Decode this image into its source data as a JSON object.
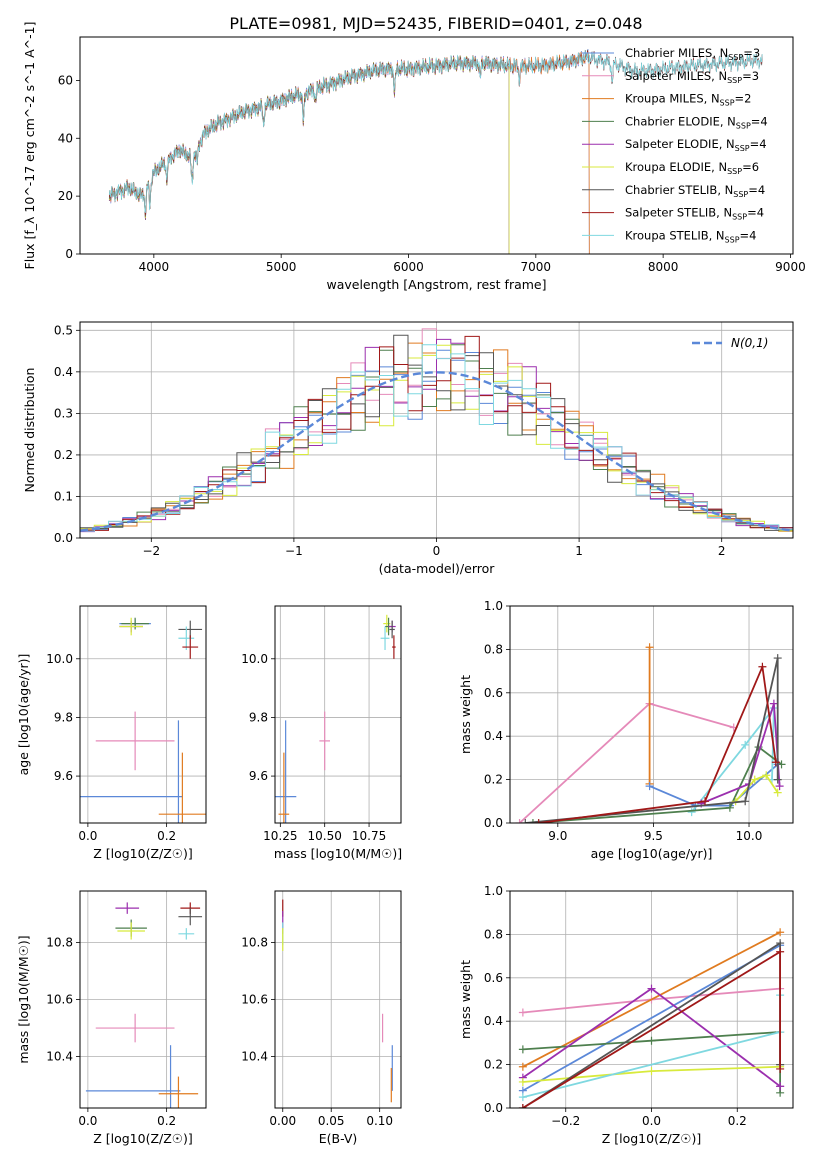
{
  "figure": {
    "title": "PLATE=0981, MJD=52435, FIBERID=0401, z=0.048"
  },
  "chart_data": [
    {
      "id": "spectrum",
      "type": "line",
      "xlabel": "wavelength [Angstrom, rest frame]",
      "ylabel": "Flux [f_λ 10^-17 erg cm^-2 s^-1 A^-1]",
      "xlim": [
        3420,
        9020
      ],
      "ylim": [
        0,
        75
      ],
      "xticks": [
        4000,
        5000,
        6000,
        7000,
        8000,
        9000
      ],
      "yticks": [
        0,
        20,
        40,
        60
      ],
      "legend_position": "upper-right",
      "series": [
        {
          "name": "Chabrier MILES, N_SSP=3",
          "label_main": "Chabrier MILES, N",
          "label_sub": "SSP",
          "label_tail": "=3",
          "color": "#5b88d8",
          "xrange": [
            3650,
            7420
          ]
        },
        {
          "name": "Salpeter MILES, N_SSP=3",
          "label_main": "Salpeter MILES, N",
          "label_sub": "SSP",
          "label_tail": "=3",
          "color": "#e58ab9",
          "xrange": [
            3650,
            7420
          ]
        },
        {
          "name": "Kroupa MILES, N_SSP=2",
          "label_main": "Kroupa MILES, N",
          "label_sub": "SSP",
          "label_tail": "=2",
          "color": "#e07b20",
          "xrange": [
            3650,
            7420
          ]
        },
        {
          "name": "Chabrier ELODIE, N_SSP=4",
          "label_main": "Chabrier ELODIE, N",
          "label_sub": "SSP",
          "label_tail": "=4",
          "color": "#4e7f4e",
          "xrange": [
            3650,
            6790
          ]
        },
        {
          "name": "Salpeter ELODIE, N_SSP=4",
          "label_main": "Salpeter ELODIE, N",
          "label_sub": "SSP",
          "label_tail": "=4",
          "color": "#9b2fae",
          "xrange": [
            3650,
            6790
          ]
        },
        {
          "name": "Kroupa ELODIE, N_SSP=6",
          "label_main": "Kroupa ELODIE, N",
          "label_sub": "SSP",
          "label_tail": "=6",
          "color": "#d8ea3c",
          "xrange": [
            3650,
            6790
          ]
        },
        {
          "name": "Chabrier STELIB, N_SSP=4",
          "label_main": "Chabrier STELIB, N",
          "label_sub": "SSP",
          "label_tail": "=4",
          "color": "#555555",
          "xrange": [
            3650,
            8780
          ]
        },
        {
          "name": "Salpeter STELIB, N_SSP=4",
          "label_main": "Salpeter STELIB, N",
          "label_sub": "SSP",
          "label_tail": "=4",
          "color": "#a01818",
          "xrange": [
            3650,
            8780
          ]
        },
        {
          "name": "Kroupa STELIB, N_SSP=4",
          "label_main": "Kroupa STELIB, N",
          "label_sub": "SSP",
          "label_tail": "=4",
          "color": "#7fd8e0",
          "xrange": [
            3650,
            8780
          ]
        }
      ],
      "continuum": {
        "x": [
          3650,
          3800,
          3900,
          4000,
          4100,
          4200,
          4300,
          4400,
          4500,
          4700,
          5000,
          5200,
          5400,
          5600,
          5800,
          6000,
          6200,
          6400,
          6600,
          6800,
          7000,
          7200,
          7400,
          7600,
          7800,
          8000,
          8200,
          8500,
          8780
        ],
        "y": [
          20,
          23,
          20,
          28,
          32,
          36,
          33,
          42,
          45,
          49,
          53,
          56,
          59,
          62,
          64,
          64,
          65,
          66,
          66,
          65,
          65,
          66,
          68,
          66,
          63,
          64,
          65,
          66,
          67
        ]
      }
    },
    {
      "id": "residuals",
      "type": "histogram",
      "xlabel": "(data-model)/error",
      "ylabel": "Normed distribution",
      "xlim": [
        -2.5,
        2.5
      ],
      "ylim": [
        0,
        0.52
      ],
      "xticks": [
        -2,
        -1,
        0,
        1,
        2
      ],
      "yticks": [
        0.0,
        0.1,
        0.2,
        0.3,
        0.4,
        0.5
      ],
      "grid": true,
      "legend_position": "upper-right",
      "reference_curve": {
        "name": "N(0,1)",
        "color": "#5b88d8",
        "style": "dashed"
      },
      "bin_width": 0.1
    },
    {
      "id": "age-vs-z",
      "type": "errorbar",
      "xlabel": "Z [log10(Z/Z☉)]",
      "ylabel": "age [log10(age/yr)]",
      "xlim": [
        -0.02,
        0.3
      ],
      "ylim": [
        9.44,
        10.18
      ],
      "xticks": [
        0.0,
        0.2
      ],
      "yticks": [
        9.6,
        9.8,
        10.0
      ],
      "grid": true,
      "points": [
        {
          "x": 0.12,
          "y": 10.12,
          "xerr": 0.04,
          "yerr": 0.015,
          "color": "#5b88d8"
        },
        {
          "x": 0.11,
          "y": 10.11,
          "xerr": 0.03,
          "yerr": 0.02,
          "color": "#9b2fae"
        },
        {
          "x": 0.12,
          "y": 10.12,
          "xerr": 0.035,
          "yerr": 0.02,
          "color": "#4e7f4e"
        },
        {
          "x": 0.11,
          "y": 10.11,
          "xerr": 0.03,
          "yerr": 0.03,
          "color": "#d8ea3c"
        },
        {
          "x": 0.26,
          "y": 10.1,
          "xerr": 0.03,
          "yerr": 0.03,
          "color": "#555555"
        },
        {
          "x": 0.25,
          "y": 10.07,
          "xerr": 0.02,
          "yerr": 0.04,
          "color": "#7fd8e0"
        },
        {
          "x": 0.26,
          "y": 10.04,
          "xerr": 0.02,
          "yerr": 0.04,
          "color": "#a01818"
        },
        {
          "x": 0.12,
          "y": 9.72,
          "xerr": 0.1,
          "yerr": 0.1,
          "color": "#e58ab9"
        },
        {
          "x": 0.23,
          "y": 9.53,
          "xerr": 0.0,
          "yerr": 0.26,
          "color": "#5b88d8"
        },
        {
          "x": 0.0,
          "y": 9.53,
          "xerr": 0.24,
          "yerr": 0.0,
          "color": "#5b88d8"
        },
        {
          "x": 0.24,
          "y": 9.47,
          "xerr": 0.06,
          "yerr": 0.21,
          "color": "#e07b20"
        }
      ]
    },
    {
      "id": "age-vs-mass",
      "type": "errorbar",
      "xlabel": "mass [log10(M/M☉)]",
      "xlim": [
        10.22,
        10.93
      ],
      "ylim": [
        9.44,
        10.18
      ],
      "xticks": [
        10.25,
        10.5,
        10.75
      ],
      "yticks": [
        9.6,
        9.8,
        10.0
      ],
      "grid": true,
      "points": [
        {
          "x": 10.85,
          "y": 10.12,
          "xerr": 0.02,
          "yerr": 0.03,
          "color": "#d8ea3c"
        },
        {
          "x": 10.86,
          "y": 10.11,
          "xerr": 0.02,
          "yerr": 0.03,
          "color": "#4e7f4e"
        },
        {
          "x": 10.88,
          "y": 10.11,
          "xerr": 0.02,
          "yerr": 0.02,
          "color": "#9b2fae"
        },
        {
          "x": 10.84,
          "y": 10.07,
          "xerr": 0.025,
          "yerr": 0.04,
          "color": "#7fd8e0"
        },
        {
          "x": 10.88,
          "y": 10.1,
          "xerr": 0.015,
          "yerr": 0.03,
          "color": "#555555"
        },
        {
          "x": 10.89,
          "y": 10.04,
          "xerr": 0.01,
          "yerr": 0.04,
          "color": "#a01818"
        },
        {
          "x": 10.5,
          "y": 9.72,
          "xerr": 0.03,
          "yerr": 0.1,
          "color": "#e58ab9"
        },
        {
          "x": 10.28,
          "y": 9.53,
          "xerr": 0.06,
          "yerr": 0.26,
          "color": "#5b88d8"
        },
        {
          "x": 10.27,
          "y": 9.47,
          "xerr": 0.03,
          "yerr": 0.21,
          "color": "#e07b20"
        }
      ]
    },
    {
      "id": "weight-vs-age",
      "type": "line",
      "xlabel": "age [log10(age/yr)]",
      "ylabel": "mass weight",
      "xlim": [
        8.75,
        10.23
      ],
      "ylim": [
        0,
        1.0
      ],
      "xticks": [
        9.0,
        9.5,
        10.0
      ],
      "yticks": [
        0.0,
        0.2,
        0.4,
        0.6,
        0.8,
        1.0
      ],
      "grid": true,
      "series": [
        {
          "color": "#e58ab9",
          "x": [
            8.8,
            9.48,
            9.92
          ],
          "y": [
            0.0,
            0.55,
            0.44
          ]
        },
        {
          "color": "#e07b20",
          "x": [
            9.48,
            9.48,
            9.48
          ],
          "y": [
            0.18,
            0.81,
            0.18
          ]
        },
        {
          "color": "#5b88d8",
          "x": [
            9.48,
            9.72,
            9.9,
            10.15
          ],
          "y": [
            0.17,
            0.08,
            0.08,
            0.27
          ]
        },
        {
          "color": "#7fd8e0",
          "x": [
            9.7,
            9.98,
            10.13,
            10.12
          ],
          "y": [
            0.05,
            0.36,
            0.53,
            0.2
          ]
        },
        {
          "color": "#4e7f4e",
          "x": [
            8.87,
            9.9,
            10.05,
            10.17
          ],
          "y": [
            0.0,
            0.07,
            0.35,
            0.27
          ]
        },
        {
          "color": "#9b2fae",
          "x": [
            9.75,
            10.0,
            10.13,
            10.16
          ],
          "y": [
            0.09,
            0.18,
            0.55,
            0.17
          ]
        },
        {
          "color": "#d8ea3c",
          "x": [
            9.93,
            10.03,
            10.09,
            10.15
          ],
          "y": [
            0.1,
            0.2,
            0.22,
            0.14
          ]
        },
        {
          "color": "#555555",
          "x": [
            8.83,
            9.98,
            10.15,
            10.15
          ],
          "y": [
            0.0,
            0.1,
            0.76,
            0.2
          ]
        },
        {
          "color": "#a01818",
          "x": [
            8.9,
            9.77,
            10.07,
            10.14
          ],
          "y": [
            0.0,
            0.1,
            0.72,
            0.28
          ]
        }
      ]
    },
    {
      "id": "mass-vs-z",
      "type": "errorbar",
      "xlabel": "Z [log10(Z/Z☉)]",
      "ylabel": "mass [log10(M/M☉)]",
      "xlim": [
        -0.02,
        0.3
      ],
      "ylim": [
        10.22,
        10.98
      ],
      "xticks": [
        0.0,
        0.2
      ],
      "yticks": [
        10.4,
        10.6,
        10.8
      ],
      "grid": true,
      "points": [
        {
          "x": 0.1,
          "y": 10.92,
          "xerr": 0.03,
          "yerr": 0.02,
          "color": "#9b2fae"
        },
        {
          "x": 0.26,
          "y": 10.92,
          "xerr": 0.025,
          "yerr": 0.02,
          "color": "#a01818"
        },
        {
          "x": 0.26,
          "y": 10.89,
          "xerr": 0.03,
          "yerr": 0.03,
          "color": "#555555"
        },
        {
          "x": 0.11,
          "y": 10.85,
          "xerr": 0.04,
          "yerr": 0.03,
          "color": "#4e7f4e"
        },
        {
          "x": 0.11,
          "y": 10.84,
          "xerr": 0.035,
          "yerr": 0.03,
          "color": "#d8ea3c"
        },
        {
          "x": 0.25,
          "y": 10.83,
          "xerr": 0.02,
          "yerr": 0.02,
          "color": "#7fd8e0"
        },
        {
          "x": 0.12,
          "y": 10.5,
          "xerr": 0.1,
          "yerr": 0.05,
          "color": "#e58ab9"
        },
        {
          "x": 0.115,
          "y": 10.28,
          "xerr": 0.12,
          "yerr": 0.0,
          "color": "#5b88d8"
        },
        {
          "x": 0.21,
          "y": 10.28,
          "xerr": 0.0,
          "yerr": 0.16,
          "color": "#5b88d8"
        },
        {
          "x": 0.23,
          "y": 10.27,
          "xerr": 0.05,
          "yerr": 0.06,
          "color": "#e07b20"
        }
      ]
    },
    {
      "id": "mass-vs-ebv",
      "type": "errorbar",
      "xlabel": "E(B-V)",
      "xlim": [
        -0.008,
        0.122
      ],
      "ylim": [
        10.22,
        10.98
      ],
      "xticks": [
        0.0,
        0.05,
        0.1
      ],
      "yticks": [
        10.4,
        10.6,
        10.8
      ],
      "grid": true,
      "points": [
        {
          "x": 0.0,
          "y": 10.92,
          "xerr": 0.0,
          "yerr": 0.03,
          "color": "#a01818"
        },
        {
          "x": 0.0,
          "y": 10.87,
          "xerr": 0.0,
          "yerr": 0.04,
          "color": "#9b2fae"
        },
        {
          "x": 0.0,
          "y": 10.83,
          "xerr": 0.0,
          "yerr": 0.04,
          "color": "#7fd8e0"
        },
        {
          "x": 0.0,
          "y": 10.81,
          "xerr": 0.0,
          "yerr": 0.04,
          "color": "#d8ea3c"
        },
        {
          "x": 0.103,
          "y": 10.5,
          "xerr": 0.0,
          "yerr": 0.05,
          "color": "#e58ab9"
        },
        {
          "x": 0.113,
          "y": 10.36,
          "xerr": 0.0,
          "yerr": 0.08,
          "color": "#5b88d8"
        },
        {
          "x": 0.112,
          "y": 10.3,
          "xerr": 0.0,
          "yerr": 0.06,
          "color": "#e07b20"
        }
      ]
    },
    {
      "id": "weight-vs-z",
      "type": "line",
      "xlabel": "Z [log10(Z/Z☉)]",
      "ylabel": "mass weight",
      "xlim": [
        -0.33,
        0.33
      ],
      "ylim": [
        0,
        1.0
      ],
      "xticks": [
        -0.2,
        0.0,
        0.2
      ],
      "yticks": [
        0.0,
        0.2,
        0.4,
        0.6,
        0.8,
        1.0
      ],
      "grid": true,
      "series": [
        {
          "color": "#e58ab9",
          "x": [
            -0.3,
            0.0,
            0.3
          ],
          "y": [
            0.44,
            0.5,
            0.55
          ]
        },
        {
          "color": "#e07b20",
          "x": [
            -0.3,
            0.3
          ],
          "y": [
            0.19,
            0.81
          ]
        },
        {
          "color": "#5b88d8",
          "x": [
            -0.3,
            0.3
          ],
          "y": [
            0.08,
            0.75
          ]
        },
        {
          "color": "#4e7f4e",
          "x": [
            -0.3,
            0.0,
            0.3,
            0.3
          ],
          "y": [
            0.27,
            0.31,
            0.35,
            0.07
          ]
        },
        {
          "color": "#9b2fae",
          "x": [
            -0.3,
            0.0,
            0.3,
            0.3
          ],
          "y": [
            0.14,
            0.55,
            0.1,
            0.1
          ]
        },
        {
          "color": "#d8ea3c",
          "x": [
            -0.3,
            0.0,
            0.3,
            0.3
          ],
          "y": [
            0.12,
            0.17,
            0.19,
            0.2
          ]
        },
        {
          "color": "#7fd8e0",
          "x": [
            -0.3,
            0.3,
            0.3,
            0.3
          ],
          "y": [
            0.05,
            0.35,
            0.52,
            0.2
          ]
        },
        {
          "color": "#555555",
          "x": [
            -0.3,
            0.3,
            0.3
          ],
          "y": [
            0.0,
            0.76,
            0.2
          ]
        },
        {
          "color": "#a01818",
          "x": [
            -0.3,
            0.3,
            0.3
          ],
          "y": [
            0.0,
            0.72,
            0.18
          ]
        }
      ]
    }
  ]
}
